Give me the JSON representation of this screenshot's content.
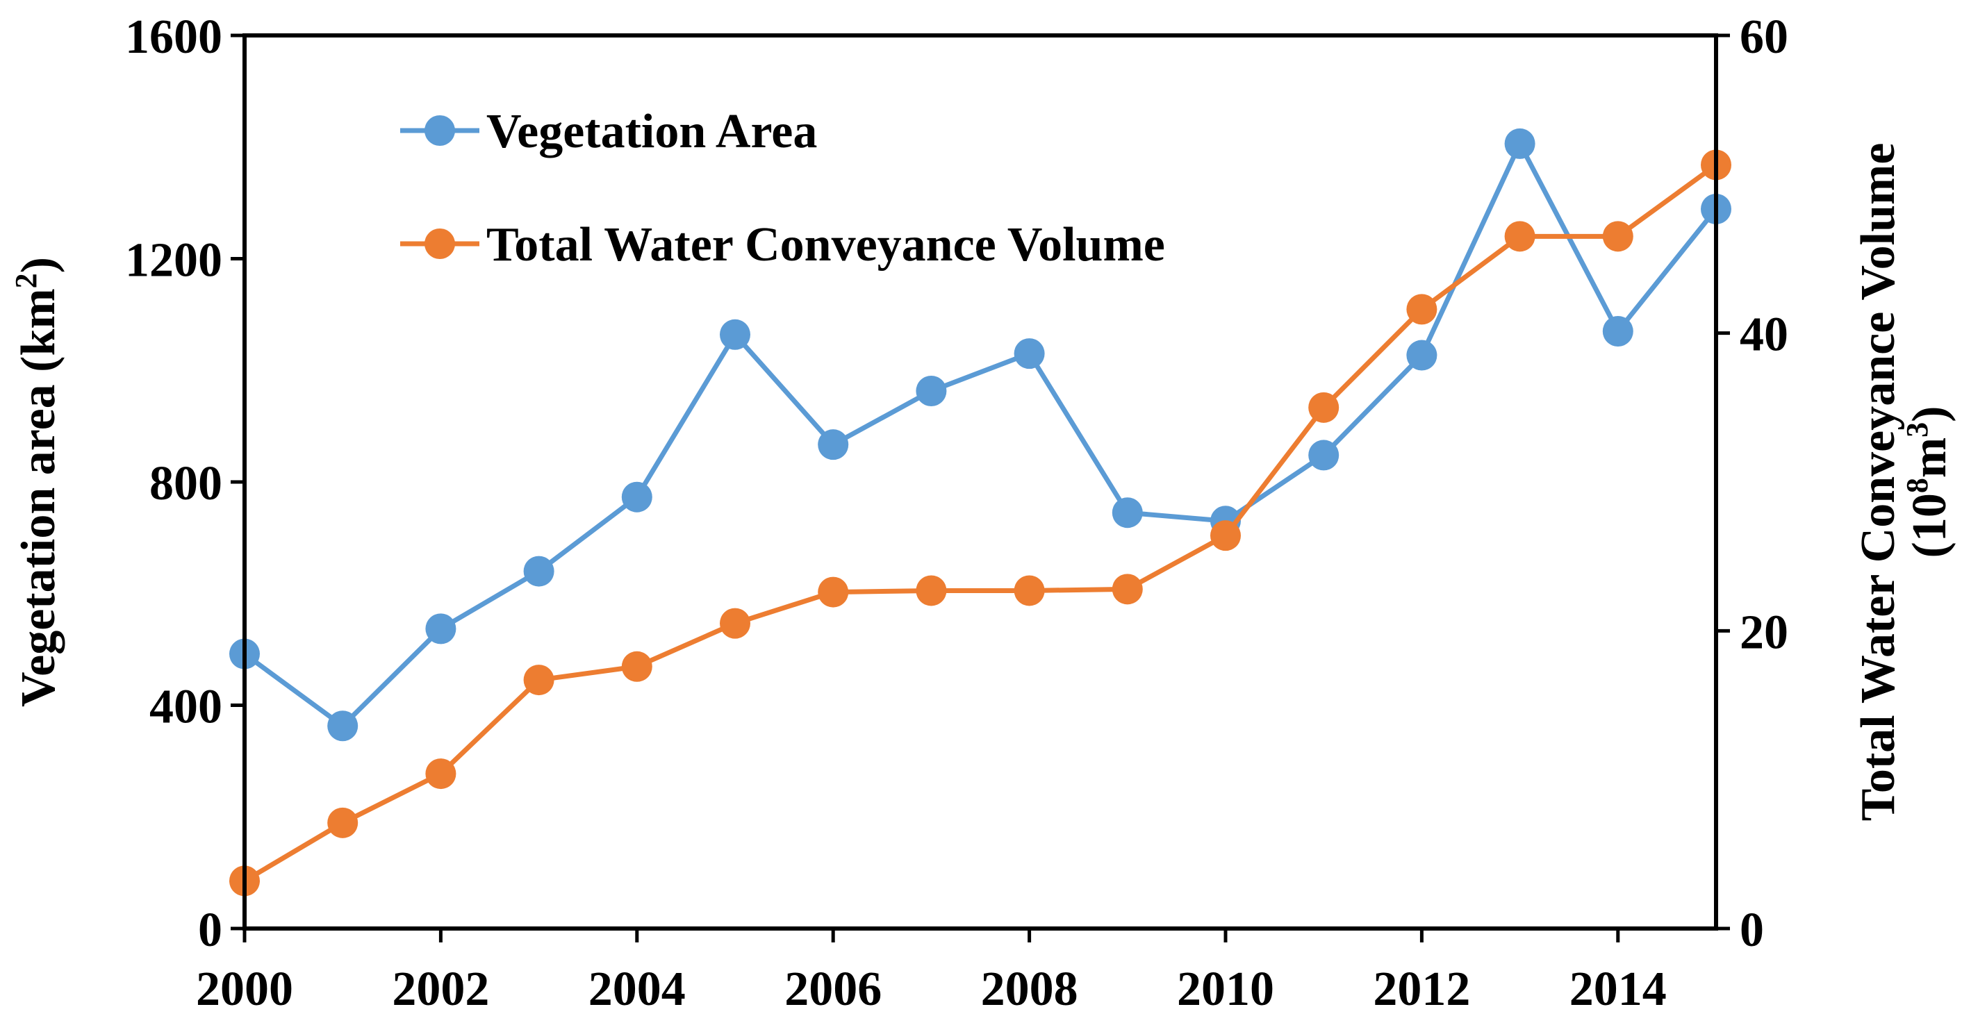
{
  "chart_data": {
    "type": "line",
    "x": [
      2000,
      2001,
      2002,
      2003,
      2004,
      2005,
      2006,
      2007,
      2008,
      2009,
      2010,
      2011,
      2012,
      2013,
      2014,
      2015
    ],
    "xlim": [
      2000,
      2015
    ],
    "x_ticks": [
      "2000",
      "2002",
      "2004",
      "2006",
      "2008",
      "2010",
      "2012",
      "2014"
    ],
    "x_tick_values": [
      2000,
      2002,
      2004,
      2006,
      2008,
      2010,
      2012,
      2014
    ],
    "ylabel_left": {
      "main": "Vegetation area (km",
      "sup": "2",
      "end": ")"
    },
    "ylim_left": [
      0,
      1600
    ],
    "y_ticks_left": [
      "0",
      "400",
      "800",
      "1200",
      "1600"
    ],
    "y_tick_values_left": [
      0,
      400,
      800,
      1200,
      1600
    ],
    "ylabel_right": {
      "line1": "Total Water Conveyance Volume",
      "line2_main_a": "(10",
      "line2_sup_a": "8",
      "line2_main_b": "m",
      "line2_sup_b": "3",
      "line2_end": ")"
    },
    "ylim_right": [
      0,
      60
    ],
    "y_ticks_right": [
      "0",
      "20",
      "40",
      "60"
    ],
    "y_tick_values_right": [
      0,
      20,
      40,
      60
    ],
    "legend_position": "top-left",
    "grid": false,
    "series": [
      {
        "name": "Vegetation Area",
        "axis": "left",
        "color": "#5B9BD5",
        "values": [
          492,
          363,
          537,
          640,
          773,
          1064,
          867,
          963,
          1030,
          745,
          730,
          848,
          1027,
          1406,
          1070,
          1289
        ]
      },
      {
        "name": "Total Water Conveyance Volume",
        "axis": "right",
        "color": "#ED7D31",
        "values": [
          3.2,
          7.1,
          10.4,
          16.7,
          17.6,
          20.5,
          22.6,
          22.7,
          22.7,
          22.8,
          26.4,
          35.0,
          41.6,
          46.5,
          46.5,
          51.3
        ]
      }
    ]
  }
}
